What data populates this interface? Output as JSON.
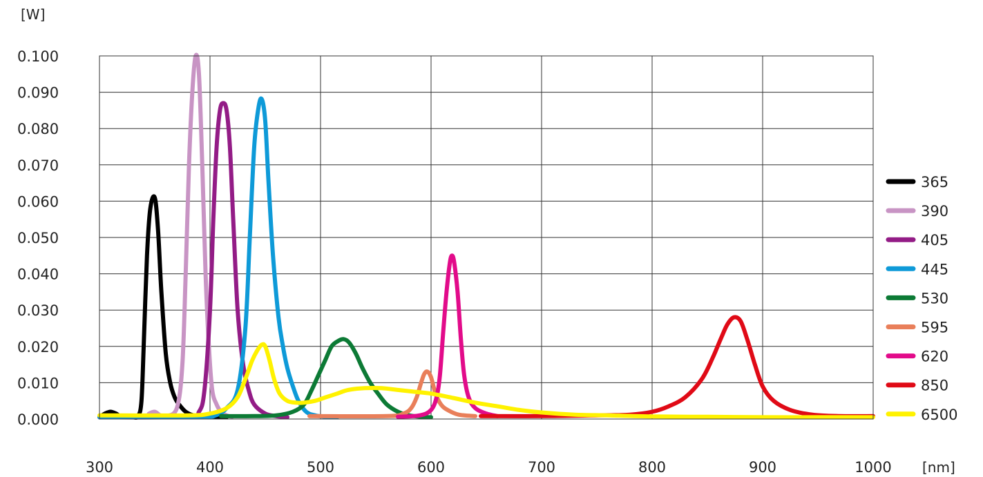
{
  "chart_data": {
    "type": "line",
    "title": "",
    "ylabel": "[W]",
    "xlabel": "[nm]",
    "xlim": [
      300,
      1000
    ],
    "ylim": [
      0,
      0.1
    ],
    "x_ticks": [
      300,
      400,
      500,
      600,
      700,
      800,
      900,
      1000
    ],
    "x_tick_labels": [
      "300",
      "400",
      "500",
      "600",
      "700",
      "800",
      "900",
      "1000"
    ],
    "y_ticks": [
      0,
      0.01,
      0.02,
      0.03,
      0.04,
      0.05,
      0.06,
      0.07,
      0.08,
      0.09,
      0.1
    ],
    "y_tick_labels": [
      "0.000",
      "0.010",
      "0.020",
      "0.030",
      "0.040",
      "0.050",
      "0.060",
      "0.070",
      "0.080",
      "0.090",
      "0.100"
    ],
    "grid": true,
    "legend_position": "right",
    "series": [
      {
        "name": "365",
        "color": "#000000",
        "x": [
          300,
          305,
          310,
          315,
          320,
          330,
          335,
          338,
          340,
          343,
          346,
          350,
          353,
          356,
          360,
          364,
          368,
          372,
          378,
          385,
          395,
          405,
          415
        ],
        "y": [
          0.0005,
          0.0015,
          0.002,
          0.0015,
          0.0006,
          0.0005,
          0.0008,
          0.005,
          0.02,
          0.045,
          0.058,
          0.061,
          0.052,
          0.035,
          0.018,
          0.01,
          0.006,
          0.004,
          0.002,
          0.001,
          0.0006,
          0.0005,
          0.0005
        ]
      },
      {
        "name": "390",
        "color": "#c894c4",
        "x": [
          300,
          340,
          345,
          350,
          355,
          360,
          370,
          375,
          378,
          381,
          384,
          387,
          390,
          393,
          396,
          399,
          402,
          406,
          410,
          415,
          420
        ],
        "y": [
          0.0005,
          0.0006,
          0.0015,
          0.002,
          0.001,
          0.0008,
          0.003,
          0.015,
          0.04,
          0.07,
          0.09,
          0.1,
          0.095,
          0.07,
          0.04,
          0.02,
          0.008,
          0.004,
          0.002,
          0.001,
          0.0006
        ]
      },
      {
        "name": "405",
        "color": "#931c86",
        "x": [
          300,
          380,
          390,
          395,
          400,
          403,
          406,
          409,
          412,
          415,
          418,
          421,
          425,
          430,
          435,
          440,
          450,
          460,
          470
        ],
        "y": [
          0.0005,
          0.0006,
          0.002,
          0.008,
          0.03,
          0.055,
          0.075,
          0.085,
          0.087,
          0.085,
          0.075,
          0.055,
          0.03,
          0.015,
          0.008,
          0.004,
          0.0015,
          0.0008,
          0.0005
        ]
      },
      {
        "name": "445",
        "color": "#0e9ad8",
        "x": [
          300,
          390,
          405,
          415,
          425,
          432,
          436,
          440,
          444,
          447,
          450,
          453,
          457,
          462,
          466,
          470,
          475,
          480,
          487,
          495,
          505,
          515
        ],
        "y": [
          0.0005,
          0.0006,
          0.001,
          0.003,
          0.008,
          0.025,
          0.05,
          0.075,
          0.086,
          0.088,
          0.082,
          0.065,
          0.045,
          0.028,
          0.02,
          0.014,
          0.009,
          0.005,
          0.002,
          0.001,
          0.0006,
          0.0005
        ]
      },
      {
        "name": "530",
        "color": "#0c7a35",
        "x": [
          410,
          440,
          460,
          475,
          485,
          492,
          498,
          504,
          510,
          516,
          521,
          526,
          532,
          538,
          545,
          552,
          560,
          570,
          580,
          592,
          600
        ],
        "y": [
          0.0008,
          0.0008,
          0.001,
          0.002,
          0.004,
          0.008,
          0.012,
          0.016,
          0.02,
          0.0215,
          0.022,
          0.021,
          0.018,
          0.014,
          0.01,
          0.007,
          0.004,
          0.002,
          0.001,
          0.0006,
          0.0005
        ]
      },
      {
        "name": "595",
        "color": "#e97f5a",
        "x": [
          490,
          560,
          575,
          582,
          587,
          591,
          594,
          597,
          600,
          604,
          609,
          615,
          625,
          640
        ],
        "y": [
          0.0008,
          0.0008,
          0.0015,
          0.003,
          0.006,
          0.01,
          0.0125,
          0.013,
          0.0115,
          0.007,
          0.004,
          0.0025,
          0.0012,
          0.0008
        ]
      },
      {
        "name": "620",
        "color": "#e20b8a",
        "x": [
          570,
          590,
          600,
          605,
          608,
          611,
          614,
          617,
          619,
          621,
          624,
          627,
          630,
          634,
          640,
          650,
          660
        ],
        "y": [
          0.0006,
          0.001,
          0.0025,
          0.006,
          0.012,
          0.024,
          0.035,
          0.043,
          0.045,
          0.043,
          0.035,
          0.022,
          0.012,
          0.006,
          0.003,
          0.0015,
          0.0008
        ]
      },
      {
        "name": "850",
        "color": "#e00a16",
        "x": [
          645,
          700,
          750,
          780,
          800,
          815,
          830,
          845,
          855,
          862,
          868,
          874,
          880,
          886,
          893,
          900,
          910,
          925,
          945,
          970,
          1000
        ],
        "y": [
          0.0008,
          0.0008,
          0.001,
          0.0012,
          0.002,
          0.0035,
          0.006,
          0.011,
          0.017,
          0.022,
          0.026,
          0.028,
          0.027,
          0.022,
          0.015,
          0.009,
          0.005,
          0.0025,
          0.0012,
          0.0008,
          0.0008
        ]
      },
      {
        "name": "6500",
        "color": "#fff200",
        "x": [
          300,
          380,
          400,
          415,
          425,
          432,
          438,
          443,
          447,
          450,
          454,
          458,
          463,
          470,
          478,
          485,
          495,
          505,
          515,
          525,
          540,
          555,
          570,
          585,
          600,
          620,
          640,
          660,
          680,
          700,
          730,
          760,
          800,
          850,
          900,
          950,
          1000
        ],
        "y": [
          0.001,
          0.001,
          0.0015,
          0.003,
          0.006,
          0.011,
          0.016,
          0.019,
          0.0205,
          0.02,
          0.016,
          0.011,
          0.007,
          0.005,
          0.0045,
          0.0045,
          0.005,
          0.006,
          0.007,
          0.008,
          0.0085,
          0.0085,
          0.008,
          0.0075,
          0.007,
          0.0058,
          0.0045,
          0.0035,
          0.0025,
          0.0018,
          0.0012,
          0.001,
          0.0007,
          0.0006,
          0.0005,
          0.0005,
          0.0005
        ]
      }
    ]
  }
}
